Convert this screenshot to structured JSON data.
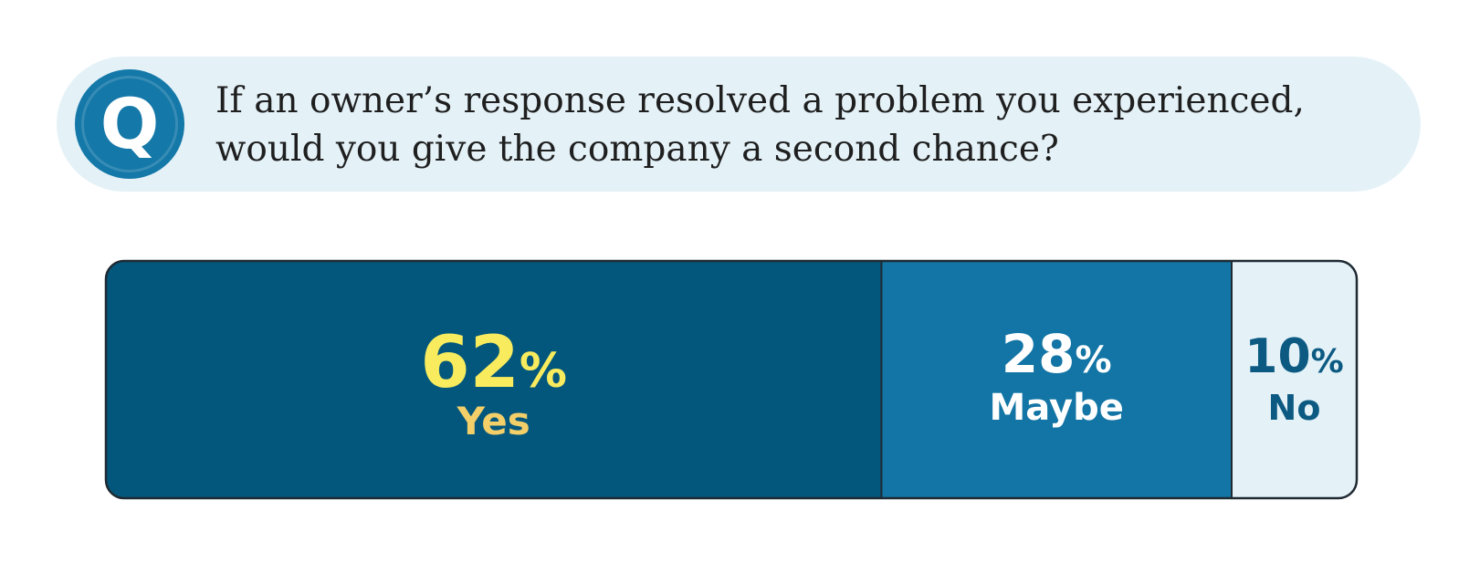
{
  "question": {
    "badge": "Q",
    "lines": [
      "If an owner’s response resolved a problem you experienced,",
      "would you give the company a second chance?"
    ]
  },
  "chart_data": {
    "type": "bar",
    "orientation": "horizontal-stacked",
    "categories": [
      "Yes",
      "Maybe",
      "No"
    ],
    "values": [
      62,
      28,
      10
    ],
    "value_labels": [
      "62%",
      "28%",
      "10%"
    ],
    "unit": "%",
    "xlim": [
      0,
      100
    ],
    "grid": false,
    "legend": "none",
    "colors": {
      "Yes": "#03577c",
      "Maybe": "#1275a5",
      "No": "#e4f2f8"
    },
    "label_colors": {
      "Yes": {
        "value": "#f8ec5e",
        "category": "#f3cf6a"
      },
      "Maybe": {
        "value": "#ffffff",
        "category": "#ffffff"
      },
      "No": {
        "value": "#0c5a82",
        "category": "#0c5a82"
      }
    },
    "border_color": "#1f2a33"
  }
}
